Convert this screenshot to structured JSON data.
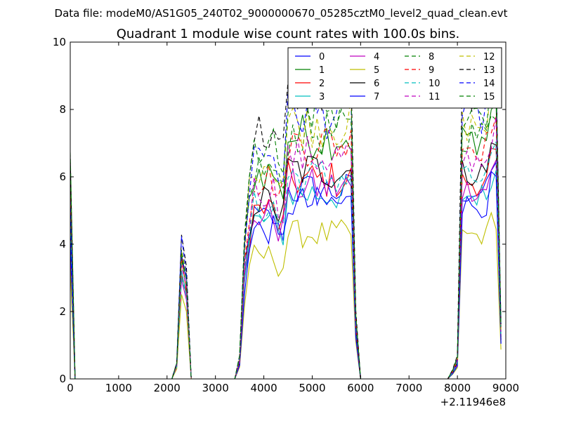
{
  "figure": {
    "suptitle": "Data file: modeM0/AS1G05_240T02_9000000670_05285cztM0_level2_quad_clean.evt"
  },
  "chart_data": {
    "type": "line",
    "title": "Quadrant 1 module wise count rates with 100.0s bins.",
    "xlabel": "",
    "ylabel": "",
    "x_offset_label": "+2.11946e8",
    "xlim": [
      0,
      9000
    ],
    "ylim": [
      0,
      10
    ],
    "xticks": [
      0,
      1000,
      2000,
      3000,
      4000,
      5000,
      6000,
      7000,
      8000,
      9000
    ],
    "yticks": [
      0,
      2,
      4,
      6,
      8,
      10
    ],
    "grid": false,
    "legend": {
      "placement": "top-right",
      "columns": 4
    },
    "segments": [
      {
        "start": 0,
        "end": 100
      },
      {
        "start": 2100,
        "end": 2500
      },
      {
        "start": 3500,
        "end": 5900
      },
      {
        "start": 7900,
        "end": 8900
      }
    ],
    "series": [
      {
        "name": "0",
        "color": "#0000ff",
        "dash": "solid",
        "base": 5.6,
        "peak": 3.6
      },
      {
        "name": "1",
        "color": "#008000",
        "dash": "solid",
        "base": 7.2,
        "peak": 3.5
      },
      {
        "name": "2",
        "color": "#ff0000",
        "dash": "solid",
        "base": 5.9,
        "peak": 3.3
      },
      {
        "name": "3",
        "color": "#00bfbf",
        "dash": "solid",
        "base": 5.5,
        "peak": 3.4
      },
      {
        "name": "4",
        "color": "#bf00bf",
        "dash": "solid",
        "base": 5.7,
        "peak": 3.2
      },
      {
        "name": "5",
        "color": "#bfbf00",
        "dash": "solid",
        "base": 4.3,
        "peak": 2.6
      },
      {
        "name": "6",
        "color": "#000000",
        "dash": "solid",
        "base": 6.2,
        "peak": 3.6
      },
      {
        "name": "7",
        "color": "#0000ff",
        "dash": "solid",
        "base": 5.2,
        "peak": 3.7
      },
      {
        "name": "8",
        "color": "#008000",
        "dash": "dashed",
        "base": 7.3,
        "peak": 3.8
      },
      {
        "name": "9",
        "color": "#ff0000",
        "dash": "dashed",
        "base": 7.0,
        "peak": 3.6
      },
      {
        "name": "10",
        "color": "#00bfbf",
        "dash": "dashed",
        "base": 6.0,
        "peak": 3.3
      },
      {
        "name": "11",
        "color": "#bf00bf",
        "dash": "dashed",
        "base": 6.6,
        "peak": 3.4
      },
      {
        "name": "12",
        "color": "#bfbf00",
        "dash": "dashed",
        "base": 7.6,
        "peak": 3.9
      },
      {
        "name": "13",
        "color": "#000000",
        "dash": "dashed",
        "base": 8.6,
        "peak": 4.3
      },
      {
        "name": "14",
        "color": "#0000ff",
        "dash": "dashed",
        "base": 7.9,
        "peak": 4.1
      },
      {
        "name": "15",
        "color": "#008000",
        "dash": "dashed",
        "base": 8.0,
        "peak": 3.9
      }
    ]
  }
}
